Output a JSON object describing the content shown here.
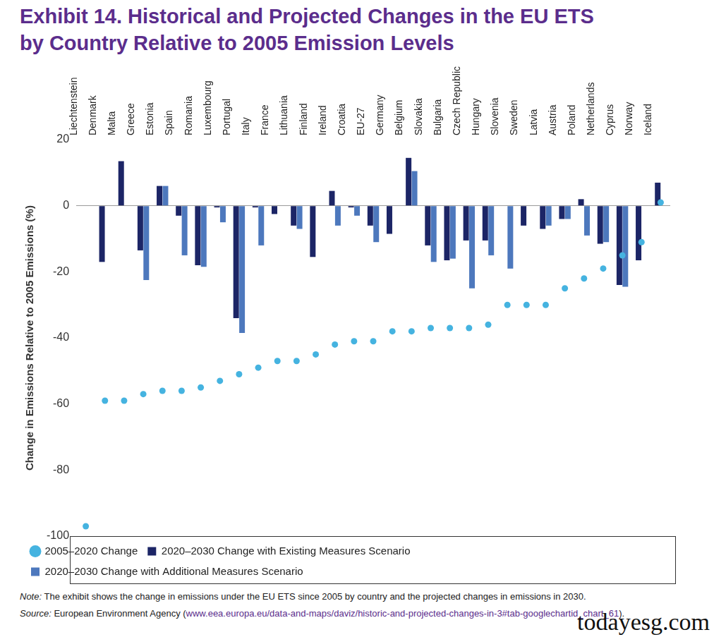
{
  "chart_data": {
    "type": "bar",
    "title": "Exhibit 14. Historical and Projected Changes in the EU ETS by Country Relative to 2005 Emission Levels",
    "y_label": "Change in Emissions Relative to 2005 Emissions (%)",
    "note_label": "Note:",
    "note": "The exhibit shows the change in emissions under the EU ETS since 2005 by country and the projected changes in emissions in 2030.",
    "source_label": "Source:",
    "source": "European Environment Agency (",
    "source_url": "www.eea.europa.eu/data-and-maps/daviz/historic-and-projected-changes-in-3#tab-googlechartid_chart_61",
    "source_end": ").",
    "watermark": "todayesg.com",
    "categories": [
      "Liechtenstein",
      "Denmark",
      "Malta",
      "Greece",
      "Estonia",
      "Spain",
      "Romania",
      "Luxembourg",
      "Portugal",
      "Italy",
      "France",
      "Lithuania",
      "Finland",
      "Ireland",
      "Croatia",
      "EU-27",
      "Germany",
      "Belgium",
      "Slovakia",
      "Bulgaria",
      "Czech Republic",
      "Hungary",
      "Slovenia",
      "Sweden",
      "Latvia",
      "Austria",
      "Poland",
      "Netherlands",
      "Cyprus",
      "Norway",
      "Iceland"
    ],
    "series": [
      {
        "name": "2020–2030 Change with Existing Measures Scenario",
        "type": "bar",
        "color": "#1c2566",
        "values": [
          null,
          -17,
          13.5,
          -13.5,
          6,
          -3,
          -18,
          -0.5,
          -34,
          -0.5,
          -2.5,
          -6,
          -15.5,
          4.5,
          -0.5,
          -6,
          -8.5,
          14.5,
          -12,
          -16.5,
          -10.5,
          -10.5,
          null,
          -6,
          -7,
          -4,
          2,
          -11.5,
          -24,
          -16.5,
          7
        ]
      },
      {
        "name": "2020–2030 Change with Additional Measures Scenario",
        "type": "bar",
        "color": "#4d78bd",
        "values": [
          null,
          null,
          null,
          -22.5,
          6,
          -15,
          -18.5,
          -5,
          -38.5,
          -12,
          null,
          -7,
          null,
          -6,
          -3,
          -11,
          null,
          10.5,
          -17,
          -16,
          -25,
          -15,
          -19,
          null,
          -6,
          -4,
          -9,
          -11,
          -24.5,
          null,
          null
        ]
      },
      {
        "name": "2005–2020 Change",
        "type": "scatter",
        "marker": "circle",
        "color": "#45b3e0",
        "values": [
          -97,
          -59,
          -59,
          -57,
          -56,
          -56,
          -55,
          -53,
          -51,
          -49,
          -47,
          -47,
          -45,
          -42,
          -41,
          -41,
          -38,
          -38,
          -37,
          -37,
          -37,
          -36,
          -30,
          -30,
          -30,
          -25,
          -22,
          -19,
          -15,
          -11,
          1
        ]
      }
    ],
    "ylim": [
      -100,
      20
    ],
    "yticks": [
      -100,
      -80,
      -60,
      -40,
      -20,
      0,
      20
    ],
    "grid": false,
    "legend": "bottom",
    "data_labels": false
  }
}
